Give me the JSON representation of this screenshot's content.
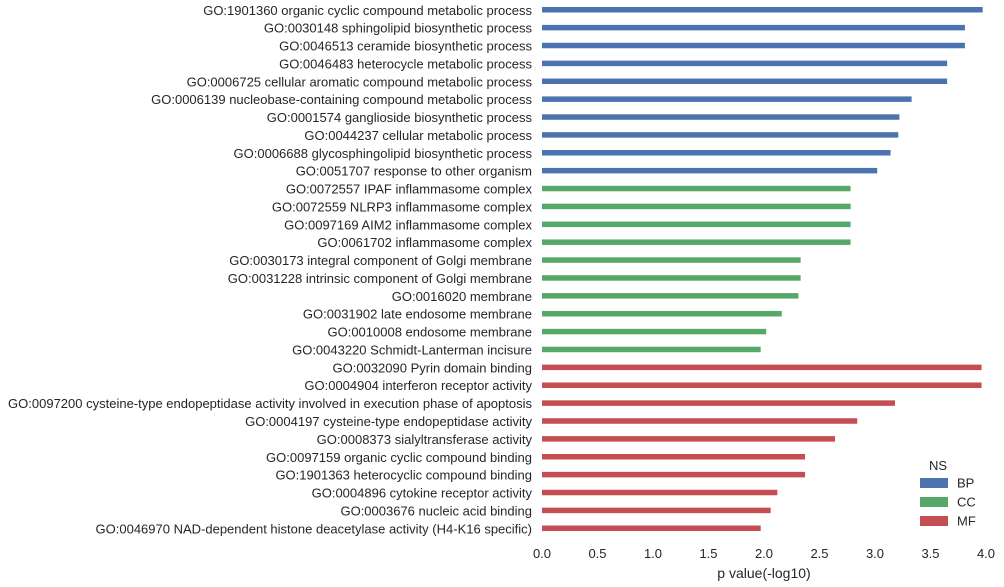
{
  "chart_data": {
    "type": "bar",
    "orientation": "horizontal",
    "xlabel": "p value(-log10)",
    "xlim": [
      0.0,
      4.0
    ],
    "xticks": [
      "0.0",
      "0.5",
      "1.0",
      "1.5",
      "2.0",
      "2.5",
      "3.0",
      "3.5",
      "4.0"
    ],
    "grid": false,
    "legend": {
      "title": "NS",
      "placement": "bottom-right",
      "entries": [
        {
          "name": "BP",
          "color": "#4c72b0"
        },
        {
          "name": "CC",
          "color": "#55a868"
        },
        {
          "name": "MF",
          "color": "#c44e52"
        }
      ]
    },
    "bars": [
      {
        "label": "GO:1901360 organic cyclic compound metabolic process",
        "value": 3.97,
        "ns": "BP"
      },
      {
        "label": "GO:0030148 sphingolipid biosynthetic process",
        "value": 3.81,
        "ns": "BP"
      },
      {
        "label": "GO:0046513 ceramide biosynthetic process",
        "value": 3.81,
        "ns": "BP"
      },
      {
        "label": "GO:0046483 heterocycle metabolic process",
        "value": 3.65,
        "ns": "BP"
      },
      {
        "label": "GO:0006725 cellular aromatic compound metabolic process",
        "value": 3.65,
        "ns": "BP"
      },
      {
        "label": "GO:0006139 nucleobase-containing compound metabolic process",
        "value": 3.33,
        "ns": "BP"
      },
      {
        "label": "GO:0001574 ganglioside biosynthetic process",
        "value": 3.22,
        "ns": "BP"
      },
      {
        "label": "GO:0044237 cellular metabolic process",
        "value": 3.21,
        "ns": "BP"
      },
      {
        "label": "GO:0006688 glycosphingolipid biosynthetic process",
        "value": 3.14,
        "ns": "BP"
      },
      {
        "label": "GO:0051707 response to other organism",
        "value": 3.02,
        "ns": "BP"
      },
      {
        "label": "GO:0072557 IPAF inflammasome complex",
        "value": 2.78,
        "ns": "CC"
      },
      {
        "label": "GO:0072559 NLRP3 inflammasome complex",
        "value": 2.78,
        "ns": "CC"
      },
      {
        "label": "GO:0097169 AIM2 inflammasome complex",
        "value": 2.78,
        "ns": "CC"
      },
      {
        "label": "GO:0061702 inflammasome complex",
        "value": 2.78,
        "ns": "CC"
      },
      {
        "label": "GO:0030173 integral component of Golgi membrane",
        "value": 2.33,
        "ns": "CC"
      },
      {
        "label": "GO:0031228 intrinsic component of Golgi membrane",
        "value": 2.33,
        "ns": "CC"
      },
      {
        "label": "GO:0016020 membrane",
        "value": 2.31,
        "ns": "CC"
      },
      {
        "label": "GO:0031902 late endosome membrane",
        "value": 2.16,
        "ns": "CC"
      },
      {
        "label": "GO:0010008 endosome membrane",
        "value": 2.02,
        "ns": "CC"
      },
      {
        "label": "GO:0043220 Schmidt-Lanterman incisure",
        "value": 1.97,
        "ns": "CC"
      },
      {
        "label": "GO:0032090 Pyrin domain binding",
        "value": 3.96,
        "ns": "MF"
      },
      {
        "label": "GO:0004904 interferon receptor activity",
        "value": 3.96,
        "ns": "MF"
      },
      {
        "label": "GO:0097200 cysteine-type endopeptidase activity involved in execution phase of apoptosis",
        "value": 3.18,
        "ns": "MF"
      },
      {
        "label": "GO:0004197 cysteine-type endopeptidase activity",
        "value": 2.84,
        "ns": "MF"
      },
      {
        "label": "GO:0008373 sialyltransferase activity",
        "value": 2.64,
        "ns": "MF"
      },
      {
        "label": "GO:0097159 organic cyclic compound binding",
        "value": 2.37,
        "ns": "MF"
      },
      {
        "label": "GO:1901363 heterocyclic compound binding",
        "value": 2.37,
        "ns": "MF"
      },
      {
        "label": "GO:0004896 cytokine receptor activity",
        "value": 2.12,
        "ns": "MF"
      },
      {
        "label": "GO:0003676 nucleic acid binding",
        "value": 2.06,
        "ns": "MF"
      },
      {
        "label": "GO:0046970 NAD-dependent histone deacetylase activity (H4-K16 specific)",
        "value": 1.97,
        "ns": "MF"
      }
    ]
  }
}
